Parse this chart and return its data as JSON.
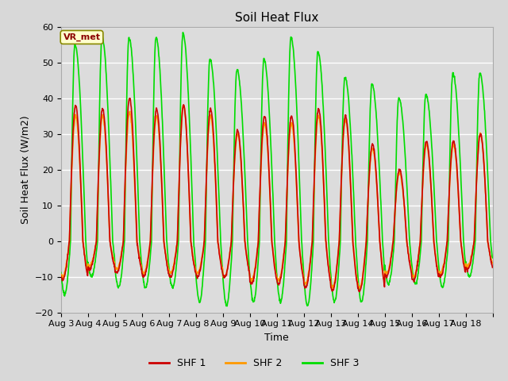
{
  "title": "Soil Heat Flux",
  "ylabel": "Soil Heat Flux (W/m2)",
  "xlabel": "Time",
  "ylim": [
    -20,
    60
  ],
  "colors": {
    "SHF 1": "#cc0000",
    "SHF 2": "#ff9900",
    "SHF 3": "#00dd00"
  },
  "legend_label": "VR_met",
  "background_color": "#dcdcdc",
  "grid_color": "#ffffff",
  "x_tick_labels": [
    "Aug 3",
    "Aug 4",
    "Aug 5",
    "Aug 6",
    "Aug 7",
    "Aug 8",
    "Aug 9",
    "Aug 10",
    "Aug 11",
    "Aug 12",
    "Aug 13",
    "Aug 14",
    "Aug 15",
    "Aug 16",
    "Aug 17",
    "Aug 18"
  ],
  "n_days": 16,
  "dt_hours": 0.25,
  "day_peaks_shf1": [
    38,
    37,
    40,
    37,
    38,
    37,
    31,
    35,
    35,
    37,
    35,
    27,
    20,
    28,
    28,
    30
  ],
  "day_peaks_shf2": [
    35,
    35,
    36,
    35,
    38,
    35,
    30,
    33,
    33,
    35,
    34,
    26,
    19,
    27,
    27,
    30
  ],
  "day_peaks_shf3": [
    55,
    57,
    57,
    57,
    58,
    51,
    48,
    51,
    57,
    53,
    46,
    44,
    40,
    41,
    47,
    47
  ],
  "night_mins_shf1": [
    -11,
    -8,
    -9,
    -10,
    -10,
    -10,
    -10,
    -12,
    -12,
    -13,
    -14,
    -14,
    -10,
    -11,
    -10,
    -8
  ],
  "night_mins_shf2": [
    -10,
    -7,
    -8,
    -9,
    -9,
    -9,
    -10,
    -11,
    -11,
    -12,
    -13,
    -13,
    -9,
    -10,
    -9,
    -7
  ],
  "night_mins_shf3": [
    -15,
    -10,
    -13,
    -13,
    -13,
    -17,
    -18,
    -17,
    -17,
    -18,
    -17,
    -17,
    -12,
    -12,
    -13,
    -10
  ],
  "rise_hour_shf1": 7.5,
  "peak_hour_shf1": 13.0,
  "fall_hour_shf1": 19.5,
  "rise_hour_shf3": 8.5,
  "peak_hour_shf3": 12.5,
  "fall_hour_shf3": 22.0
}
